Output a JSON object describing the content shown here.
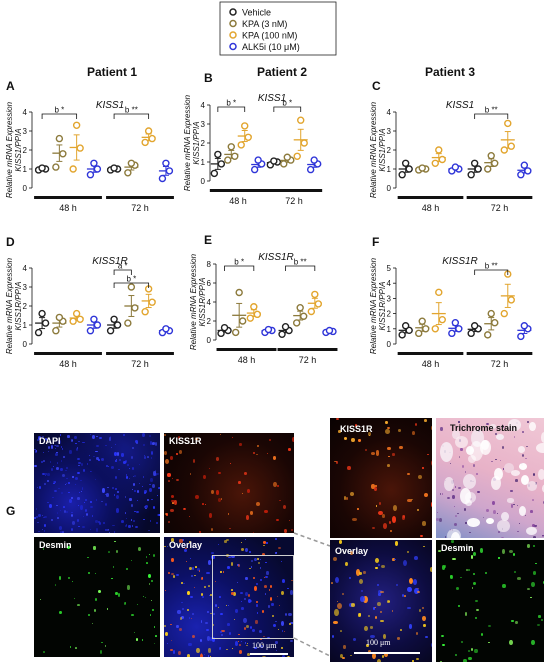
{
  "legend": [
    {
      "label": "Vehicle",
      "color": "#222222"
    },
    {
      "label": "KPA (3 nM)",
      "color": "#8c7a3c"
    },
    {
      "label": "KPA (100 nM)",
      "color": "#e2a52e"
    },
    {
      "label": "ALK5i (10 μM)",
      "color": "#2f35d8"
    }
  ],
  "patients": [
    "Patient 1",
    "Patient 2",
    "Patient 3"
  ],
  "groups": [
    "48 h",
    "72 h"
  ],
  "ylabel_common": "Relative mRNA Expression",
  "colors": {
    "vehicle": "#222222",
    "kpa3": "#8c7a3c",
    "kpa100": "#e2a52e",
    "alk5i": "#2f35d8"
  },
  "chart_data": [
    {
      "panel": "A",
      "type": "scatter",
      "title": "KISS1",
      "ylabel": "KISS1/PPIA",
      "ylim": [
        0,
        4
      ],
      "yticks": [
        0,
        1,
        2,
        3,
        4
      ],
      "sig": [
        {
          "group": 0,
          "from": 0,
          "to": 2,
          "text": "b *"
        },
        {
          "group": 1,
          "from": 0,
          "to": 2,
          "text": "b **"
        }
      ],
      "series": [
        {
          "name": "Vehicle",
          "values": [
            [
              0.95,
              1.0,
              1.05
            ],
            [
              0.95,
              1.0,
              1.05
            ]
          ]
        },
        {
          "name": "KPA (3 nM)",
          "values": [
            [
              1.1,
              1.8,
              2.6
            ],
            [
              0.8,
              1.2,
              1.3
            ]
          ]
        },
        {
          "name": "KPA (100 nM)",
          "values": [
            [
              1.0,
              2.1,
              3.3
            ],
            [
              2.4,
              2.6,
              3.0
            ]
          ]
        },
        {
          "name": "ALK5i (10 μM)",
          "values": [
            [
              0.7,
              1.0,
              1.3
            ],
            [
              0.5,
              0.9,
              1.3
            ]
          ]
        }
      ]
    },
    {
      "panel": "B",
      "type": "scatter",
      "title": "KISS1",
      "ylabel": "KISS1/PPIA",
      "ylim": [
        0,
        4
      ],
      "yticks": [
        0,
        1,
        2,
        3,
        4
      ],
      "sig": [
        {
          "group": 0,
          "from": 0,
          "to": 2,
          "text": "b *"
        },
        {
          "group": 1,
          "from": 0,
          "to": 2,
          "text": "b *"
        }
      ],
      "series": [
        {
          "name": "Vehicle",
          "values": [
            [
              0.4,
              0.9,
              1.4
            ],
            [
              0.85,
              1.0,
              1.05
            ]
          ]
        },
        {
          "name": "KPA (3 nM)",
          "values": [
            [
              1.1,
              1.3,
              1.8
            ],
            [
              0.9,
              1.1,
              1.25
            ]
          ]
        },
        {
          "name": "KPA (100 nM)",
          "values": [
            [
              1.9,
              2.3,
              2.9
            ],
            [
              1.3,
              2.0,
              3.2
            ]
          ]
        },
        {
          "name": "ALK5i (10 μM)",
          "values": [
            [
              0.6,
              0.9,
              1.1
            ],
            [
              0.6,
              0.9,
              1.1
            ]
          ]
        }
      ]
    },
    {
      "panel": "C",
      "type": "scatter",
      "title": "KISS1",
      "ylabel": "KISS1/PPIA",
      "ylim": [
        0,
        4
      ],
      "yticks": [
        0,
        1,
        2,
        3,
        4
      ],
      "sig": [
        {
          "group": 1,
          "from": 0,
          "to": 2,
          "text": "b **"
        }
      ],
      "series": [
        {
          "name": "Vehicle",
          "values": [
            [
              0.7,
              1.0,
              1.3
            ],
            [
              0.7,
              1.0,
              1.3
            ]
          ]
        },
        {
          "name": "KPA (3 nM)",
          "values": [
            [
              0.95,
              1.0,
              1.05
            ],
            [
              1.0,
              1.3,
              1.7
            ]
          ]
        },
        {
          "name": "KPA (100 nM)",
          "values": [
            [
              1.3,
              1.5,
              2.0
            ],
            [
              2.0,
              2.2,
              3.4
            ]
          ]
        },
        {
          "name": "ALK5i (10 μM)",
          "values": [
            [
              0.9,
              1.0,
              1.1
            ],
            [
              0.7,
              0.9,
              1.2
            ]
          ]
        }
      ]
    },
    {
      "panel": "D",
      "type": "scatter",
      "title": "KISS1R",
      "ylabel": "KISS1R/PPIA",
      "ylim": [
        0,
        4
      ],
      "yticks": [
        0,
        1,
        2,
        3,
        4
      ],
      "sig": [
        {
          "group": 1,
          "from": 0,
          "to": 1,
          "text": "a *"
        },
        {
          "group": 1,
          "from": 0,
          "to": 2,
          "text": "b *"
        }
      ],
      "series": [
        {
          "name": "Vehicle",
          "values": [
            [
              0.6,
              1.1,
              1.6
            ],
            [
              0.7,
              1.0,
              1.3
            ]
          ]
        },
        {
          "name": "KPA (3 nM)",
          "values": [
            [
              0.7,
              1.2,
              1.4
            ],
            [
              1.1,
              1.9,
              3.0
            ]
          ]
        },
        {
          "name": "KPA (100 nM)",
          "values": [
            [
              1.2,
              1.3,
              1.6
            ],
            [
              1.7,
              2.2,
              2.9
            ]
          ]
        },
        {
          "name": "ALK5i (10 μM)",
          "values": [
            [
              0.7,
              1.0,
              1.3
            ],
            [
              0.6,
              0.7,
              0.8
            ]
          ]
        }
      ]
    },
    {
      "panel": "E",
      "type": "scatter",
      "title": "KISS1R",
      "ylabel": "KISS1R/PPIA",
      "ylim": [
        0,
        8
      ],
      "yticks": [
        0,
        2,
        4,
        6,
        8
      ],
      "sig": [
        {
          "group": 0,
          "from": 0,
          "to": 2,
          "text": "b *"
        },
        {
          "group": 1,
          "from": 0,
          "to": 2,
          "text": "b **"
        }
      ],
      "series": [
        {
          "name": "Vehicle",
          "values": [
            [
              0.7,
              1.0,
              1.3
            ],
            [
              0.6,
              1.0,
              1.4
            ]
          ]
        },
        {
          "name": "KPA (3 nM)",
          "values": [
            [
              0.8,
              2.0,
              5.0
            ],
            [
              1.8,
              2.5,
              3.4
            ]
          ]
        },
        {
          "name": "KPA (100 nM)",
          "values": [
            [
              2.3,
              2.7,
              3.5
            ],
            [
              3.0,
              3.8,
              4.8
            ]
          ]
        },
        {
          "name": "ALK5i (10 μM)",
          "values": [
            [
              0.8,
              1.0,
              1.1
            ],
            [
              0.8,
              0.9,
              1.0
            ]
          ]
        }
      ]
    },
    {
      "panel": "F",
      "type": "scatter",
      "title": "KISS1R",
      "ylabel": "KISS1R/PPIA",
      "ylim": [
        0,
        5
      ],
      "yticks": [
        0,
        1,
        2,
        3,
        4,
        5
      ],
      "sig": [
        {
          "group": 1,
          "from": 0,
          "to": 2,
          "text": "b **"
        }
      ],
      "series": [
        {
          "name": "Vehicle",
          "values": [
            [
              0.6,
              0.9,
              1.2
            ],
            [
              0.7,
              1.0,
              1.2
            ]
          ]
        },
        {
          "name": "KPA (3 nM)",
          "values": [
            [
              0.7,
              1.0,
              1.5
            ],
            [
              0.6,
              1.4,
              2.0
            ]
          ]
        },
        {
          "name": "KPA (100 nM)",
          "values": [
            [
              1.0,
              1.6,
              3.4
            ],
            [
              2.0,
              2.9,
              4.6
            ]
          ]
        },
        {
          "name": "ALK5i (10 μM)",
          "values": [
            [
              0.7,
              1.0,
              1.4
            ],
            [
              0.5,
              1.0,
              1.2
            ]
          ]
        }
      ]
    }
  ],
  "panelG": {
    "letter": "G",
    "images": [
      {
        "label": "DAPI"
      },
      {
        "label": "KISS1R"
      },
      {
        "label": "Desmin"
      },
      {
        "label": "Overlay"
      },
      {
        "label": "KISS1R"
      },
      {
        "label": "Trichrome stain"
      },
      {
        "label": "Overlay"
      },
      {
        "label": "Desmin"
      }
    ],
    "scalebar": "100 μm"
  }
}
